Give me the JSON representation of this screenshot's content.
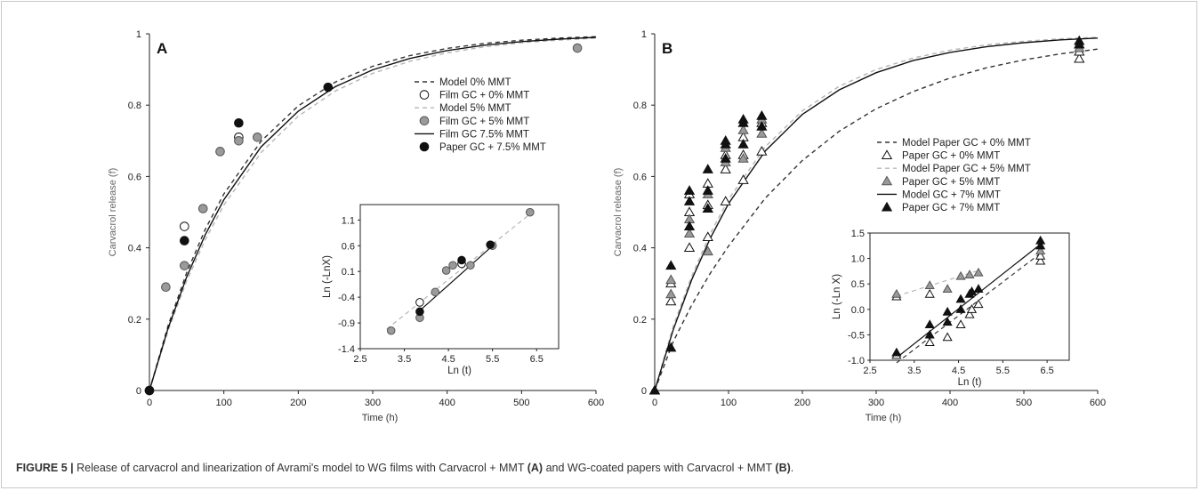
{
  "figure": {
    "caption_label": "FIGURE 5 |",
    "caption_parts": [
      "Release of carvacrol and linearization of Avrami's model to WG films with Carvacrol + MMT ",
      "(A)",
      " and WG-coated papers with Carvacrol + MMT ",
      "(B)",
      "."
    ]
  },
  "chart_data": [
    {
      "type": "scatter",
      "panel_label": "A",
      "xlabel": "Time (h)",
      "ylabel": "Carvacrol release (f)",
      "xlim": [
        0,
        600
      ],
      "ylim": [
        0,
        1
      ],
      "xticks": [
        "0",
        "100",
        "200",
        "300",
        "400",
        "500",
        "600"
      ],
      "yticks": [
        "0",
        "0.2",
        "0.4",
        "0.6",
        "0.8",
        "1"
      ],
      "grid": false,
      "legend_position": "top-right",
      "series": [
        {
          "name": "Model 0% MMT",
          "kind": "line",
          "style": "dashed",
          "color": "#333333",
          "x": [
            0,
            25,
            50,
            75,
            100,
            150,
            200,
            250,
            300,
            350,
            400,
            450,
            500,
            550,
            600
          ],
          "y": [
            0,
            0.181,
            0.33,
            0.452,
            0.551,
            0.699,
            0.798,
            0.865,
            0.909,
            0.939,
            0.959,
            0.973,
            0.982,
            0.988,
            0.992
          ]
        },
        {
          "name": "Film GC + 0% MMT",
          "kind": "marker",
          "marker": "circle-open",
          "color": "#222222",
          "x": [
            0,
            47,
            120
          ],
          "y": [
            0,
            0.46,
            0.71
          ]
        },
        {
          "name": "Model 5% MMT",
          "kind": "line",
          "style": "dashed",
          "color": "#b5b5b5",
          "x": [
            0,
            25,
            50,
            75,
            100,
            150,
            200,
            250,
            300,
            350,
            400,
            450,
            500,
            550,
            600
          ],
          "y": [
            0,
            0.167,
            0.307,
            0.423,
            0.52,
            0.667,
            0.769,
            0.84,
            0.889,
            0.923,
            0.947,
            0.963,
            0.975,
            0.982,
            0.988
          ]
        },
        {
          "name": "Film GC + 5% MMT",
          "kind": "marker",
          "marker": "circle-gray",
          "color": "#8f8f8f",
          "x": [
            0,
            22,
            47,
            72,
            95,
            120,
            145,
            575
          ],
          "y": [
            0,
            0.29,
            0.35,
            0.51,
            0.67,
            0.7,
            0.71,
            0.96
          ]
        },
        {
          "name": "Film GC 7.5% MMT",
          "kind": "line",
          "style": "solid",
          "color": "#111111",
          "x": [
            0,
            25,
            50,
            75,
            100,
            150,
            200,
            250,
            300,
            350,
            400,
            450,
            500,
            550,
            600
          ],
          "y": [
            0,
            0.174,
            0.318,
            0.437,
            0.535,
            0.683,
            0.783,
            0.852,
            0.899,
            0.931,
            0.953,
            0.968,
            0.978,
            0.985,
            0.99
          ]
        },
        {
          "name": "Paper GC + 7.5% MMT",
          "kind": "marker",
          "marker": "circle-black",
          "color": "#111111",
          "x": [
            0,
            47,
            120,
            240
          ],
          "y": [
            0,
            0.42,
            0.75,
            0.85
          ]
        }
      ],
      "inset": {
        "xlabel": "Ln (t)",
        "ylabel": "Ln (-LnX)",
        "xlim": [
          2.5,
          7.0
        ],
        "ylim": [
          -1.4,
          1.4
        ],
        "xticks": [
          "2.5",
          "3.5",
          "4.5",
          "5.5",
          "6.5"
        ],
        "yticks": [
          "-1.4",
          "-0.9",
          "-0.4",
          "0.1",
          "0.6",
          "1.1"
        ],
        "series": [
          {
            "kind": "line",
            "style": "dashed",
            "color": "#b5b5b5",
            "x": [
              3.1,
              6.4
            ],
            "y": [
              -1.02,
              1.25
            ]
          },
          {
            "kind": "line",
            "style": "solid",
            "color": "#111111",
            "x": [
              3.85,
              5.5
            ],
            "y": [
              -0.66,
              0.6
            ]
          },
          {
            "kind": "marker",
            "marker": "circle-gray",
            "x": [
              3.2,
              3.85,
              4.2,
              4.45,
              4.6,
              4.8,
              5.0,
              5.5,
              6.35
            ],
            "y": [
              -1.05,
              -0.8,
              -0.3,
              0.12,
              0.22,
              0.25,
              0.22,
              0.6,
              1.25
            ]
          },
          {
            "kind": "marker",
            "marker": "circle-open",
            "x": [
              3.85,
              4.8
            ],
            "y": [
              -0.5,
              0.25
            ]
          },
          {
            "kind": "marker",
            "marker": "circle-black",
            "x": [
              3.85,
              4.8,
              5.45
            ],
            "y": [
              -0.68,
              0.32,
              0.62
            ]
          }
        ]
      }
    },
    {
      "type": "scatter",
      "panel_label": "B",
      "xlabel": "Time (h)",
      "ylabel": "Carvacrol release (f)",
      "xlim": [
        0,
        600
      ],
      "ylim": [
        0,
        1
      ],
      "xticks": [
        "0",
        "100",
        "200",
        "300",
        "400",
        "500",
        "600"
      ],
      "yticks": [
        "0",
        "0.2",
        "0.4",
        "0.6",
        "0.8",
        "1"
      ],
      "grid": false,
      "legend_position": "right",
      "series": [
        {
          "name": "Model Paper GC + 0% MMT",
          "kind": "line",
          "style": "dashed",
          "color": "#333333",
          "x": [
            0,
            25,
            50,
            75,
            100,
            150,
            200,
            250,
            300,
            350,
            400,
            450,
            500,
            550,
            600
          ],
          "y": [
            0,
            0.137,
            0.239,
            0.328,
            0.405,
            0.54,
            0.645,
            0.727,
            0.79,
            0.838,
            0.876,
            0.905,
            0.927,
            0.944,
            0.957
          ]
        },
        {
          "name": "Paper GC + 0% MMT",
          "kind": "marker",
          "marker": "triangle-open",
          "color": "#222222",
          "x": [
            0,
            0,
            22,
            22,
            47,
            47,
            47,
            72,
            72,
            72,
            96,
            96,
            96,
            120,
            120,
            120,
            145,
            145,
            575,
            575,
            575
          ],
          "y": [
            0,
            0,
            0.25,
            0.3,
            0.4,
            0.5,
            0.55,
            0.43,
            0.52,
            0.58,
            0.53,
            0.62,
            0.66,
            0.59,
            0.66,
            0.71,
            0.67,
            0.75,
            0.93,
            0.95,
            0.97
          ]
        },
        {
          "name": "Model Paper GC + 5% MMT",
          "kind": "line",
          "style": "dashed",
          "color": "#b5b5b5",
          "x": [
            0,
            25,
            50,
            75,
            100,
            150,
            200,
            250,
            300,
            350,
            400,
            450,
            500,
            550,
            600
          ],
          "y": [
            0,
            0.18,
            0.32,
            0.439,
            0.536,
            0.684,
            0.784,
            0.853,
            0.9,
            0.932,
            0.954,
            0.969,
            0.979,
            0.986,
            0.99
          ]
        },
        {
          "name": "Paper GC + 5% MMT",
          "kind": "marker",
          "marker": "triangle-gray",
          "color": "#8f8f8f",
          "x": [
            22,
            22,
            47,
            47,
            72,
            72,
            72,
            96,
            96,
            120,
            120,
            145,
            145,
            575
          ],
          "y": [
            0.27,
            0.31,
            0.44,
            0.48,
            0.39,
            0.51,
            0.55,
            0.64,
            0.68,
            0.65,
            0.73,
            0.72,
            0.76,
            0.96
          ]
        },
        {
          "name": "Model GC + 7% MMT",
          "kind": "line",
          "style": "solid",
          "color": "#111111",
          "x": [
            0,
            25,
            50,
            75,
            100,
            150,
            200,
            250,
            300,
            350,
            400,
            450,
            500,
            550,
            600
          ],
          "y": [
            0,
            0.17,
            0.31,
            0.426,
            0.524,
            0.672,
            0.774,
            0.843,
            0.891,
            0.925,
            0.948,
            0.964,
            0.975,
            0.983,
            0.988
          ]
        },
        {
          "name": "Paper GC + 7% MMT",
          "kind": "marker",
          "marker": "triangle-black",
          "color": "#111111",
          "x": [
            0,
            22,
            22,
            47,
            47,
            47,
            72,
            72,
            72,
            96,
            96,
            96,
            120,
            120,
            120,
            145,
            145,
            575,
            575
          ],
          "y": [
            0,
            0.12,
            0.35,
            0.46,
            0.53,
            0.56,
            0.51,
            0.56,
            0.62,
            0.65,
            0.69,
            0.7,
            0.69,
            0.75,
            0.76,
            0.74,
            0.77,
            0.97,
            0.98
          ]
        }
      ],
      "inset": {
        "xlabel": "Ln (t)",
        "ylabel": "Ln (-Ln X)",
        "xlim": [
          2.5,
          7.0
        ],
        "ylim": [
          -1.0,
          1.5
        ],
        "xticks": [
          "2.5",
          "3.5",
          "4.5",
          "5.5",
          "6.5"
        ],
        "yticks": [
          "-1.0",
          "-0.5",
          "0.0",
          "0.5",
          "1.0",
          "1.5"
        ],
        "series": [
          {
            "kind": "line",
            "style": "dashed",
            "color": "#333333",
            "x": [
              3.1,
              6.35
            ],
            "y": [
              -1.05,
              1.1
            ]
          },
          {
            "kind": "line",
            "style": "dashed",
            "color": "#b5b5b5",
            "x": [
              3.1,
              4.9
            ],
            "y": [
              0.26,
              0.75
            ]
          },
          {
            "kind": "line",
            "style": "solid",
            "color": "#111111",
            "x": [
              3.1,
              6.35
            ],
            "y": [
              -0.95,
              1.28
            ]
          },
          {
            "kind": "marker",
            "marker": "triangle-open",
            "x": [
              3.1,
              3.1,
              3.85,
              3.85,
              4.25,
              4.55,
              4.75,
              4.8,
              4.95,
              6.35,
              6.35
            ],
            "y": [
              -0.9,
              0.25,
              -0.65,
              0.3,
              -0.55,
              -0.3,
              -0.1,
              0.0,
              0.1,
              0.95,
              1.05
            ]
          },
          {
            "kind": "marker",
            "marker": "triangle-gray",
            "x": [
              3.1,
              3.85,
              4.25,
              4.55,
              4.75,
              4.95,
              6.35
            ],
            "y": [
              0.3,
              0.47,
              0.4,
              0.65,
              0.68,
              0.72,
              1.15
            ]
          },
          {
            "kind": "marker",
            "marker": "triangle-black",
            "x": [
              3.1,
              3.85,
              3.85,
              4.25,
              4.25,
              4.55,
              4.55,
              4.75,
              4.8,
              4.95,
              6.35,
              6.35
            ],
            "y": [
              -0.85,
              -0.5,
              -0.3,
              -0.25,
              -0.05,
              0.0,
              0.2,
              0.3,
              0.35,
              0.4,
              1.25,
              1.35
            ]
          }
        ]
      }
    }
  ]
}
